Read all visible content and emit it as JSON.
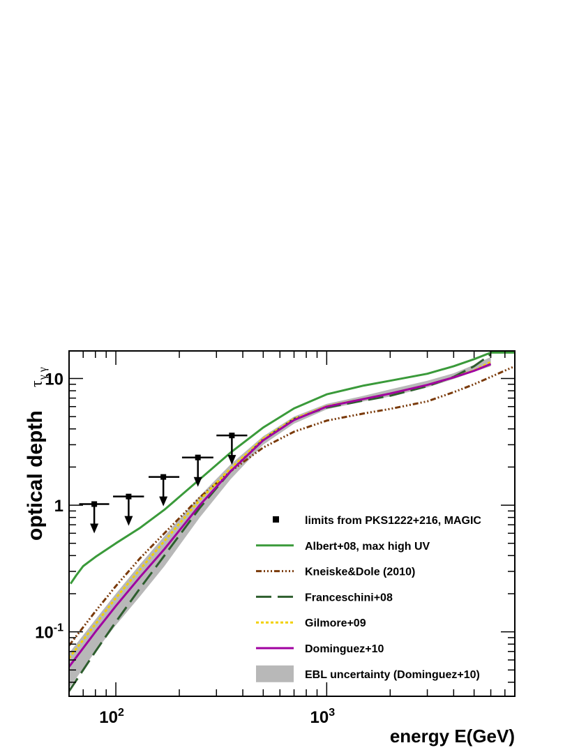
{
  "chart_data": {
    "type": "line",
    "xlabel": "energy E(GeV)",
    "ylabel": "optical depth",
    "ylabel_symbol": "τ",
    "ylabel_subscript": "γ γ",
    "xscale": "log",
    "yscale": "log",
    "xlim": [
      60,
      7800
    ],
    "ylim": [
      0.031,
      16.5
    ],
    "x_ticks": [
      {
        "value": 100,
        "base": "10",
        "exp": "2"
      },
      {
        "value": 1000,
        "base": "10",
        "exp": "3"
      }
    ],
    "y_ticks": [
      {
        "value": 0.1,
        "base": "10",
        "exp": "-1"
      },
      {
        "value": 1,
        "label": "1"
      },
      {
        "value": 10,
        "label": "10"
      }
    ],
    "legend_position": "bottom-right",
    "band": {
      "name": "EBL uncertainty (Dominguez+10)",
      "color": "#b8b8b8",
      "x": [
        60,
        80,
        100,
        130,
        170,
        250,
        350,
        500,
        700,
        1000,
        1500,
        2000,
        3000,
        4000,
        5000,
        6000
      ],
      "upper": [
        0.068,
        0.125,
        0.2,
        0.34,
        0.57,
        1.18,
        2.1,
        3.5,
        5.0,
        6.3,
        7.3,
        8.2,
        9.6,
        11.0,
        12.8,
        14.8
      ],
      "lower": [
        0.036,
        0.07,
        0.113,
        0.19,
        0.33,
        0.8,
        1.6,
        3.0,
        4.4,
        5.7,
        6.6,
        7.2,
        8.5,
        9.9,
        11.3,
        12.5
      ]
    },
    "series": [
      {
        "name": "Albert+08, max high UV",
        "color": "#3a9a3a",
        "dash": "solid",
        "x": [
          61,
          65,
          70,
          80,
          100,
          130,
          170,
          250,
          350,
          500,
          700,
          1000,
          1500,
          2000,
          3000,
          4000,
          5000,
          6000,
          7800
        ],
        "y": [
          0.24,
          0.28,
          0.33,
          0.39,
          0.5,
          0.66,
          0.92,
          1.6,
          2.6,
          4.1,
          5.8,
          7.5,
          8.8,
          9.6,
          10.9,
          12.5,
          14.2,
          16.0,
          16.0
        ]
      },
      {
        "name": "Kneiske&Dole (2010)",
        "color": "#7a3a0a",
        "dash": "8,3,2,3,2,3,2,3",
        "x": [
          60,
          80,
          100,
          130,
          170,
          250,
          350,
          500,
          700,
          1000,
          1500,
          2000,
          3000,
          4000,
          5000,
          6000,
          7800
        ],
        "y": [
          0.078,
          0.145,
          0.23,
          0.38,
          0.6,
          1.15,
          1.85,
          2.85,
          3.8,
          4.65,
          5.3,
          5.75,
          6.6,
          7.8,
          9.0,
          10.3,
          12.5
        ]
      },
      {
        "name": "Franceschini+08",
        "color": "#2e5e2e",
        "dash": "22,9",
        "x": [
          60,
          80,
          100,
          130,
          170,
          250,
          350,
          500,
          700,
          1000,
          1500,
          2000,
          3000,
          4000,
          5000,
          6000
        ],
        "y": [
          0.034,
          0.07,
          0.12,
          0.22,
          0.4,
          0.95,
          1.85,
          3.3,
          4.8,
          5.9,
          6.7,
          7.3,
          8.7,
          10.3,
          12.5,
          15.5
        ]
      },
      {
        "name": "Gilmore+09",
        "color": "#f2d000",
        "dash": "4,3",
        "x": [
          60,
          80,
          100,
          130,
          170,
          250,
          350,
          500,
          700,
          1000,
          1500,
          2000,
          3000,
          4000,
          5000,
          6000
        ],
        "y": [
          0.062,
          0.115,
          0.185,
          0.31,
          0.52,
          1.1,
          1.95,
          3.35,
          4.8,
          6.05,
          6.9,
          7.6,
          8.9,
          10.2,
          11.6,
          13.5
        ]
      },
      {
        "name": "Dominguez+10",
        "color": "#a000a0",
        "dash": "solid",
        "x": [
          60,
          80,
          100,
          130,
          170,
          250,
          350,
          500,
          700,
          1000,
          1500,
          2000,
          3000,
          4000,
          5000,
          6000
        ],
        "y": [
          0.053,
          0.1,
          0.16,
          0.27,
          0.45,
          1.0,
          1.85,
          3.25,
          4.7,
          6.0,
          6.9,
          7.6,
          8.9,
          10.2,
          11.5,
          13.0
        ]
      }
    ],
    "limits": {
      "name": "limits from PKS1222+216, MAGIC",
      "color": "#000000",
      "points": [
        {
          "x": 79,
          "y": 1.02,
          "xlo": 67,
          "xhi": 93
        },
        {
          "x": 115,
          "y": 1.17,
          "xlo": 97,
          "xhi": 136
        },
        {
          "x": 168,
          "y": 1.67,
          "xlo": 143,
          "xhi": 200
        },
        {
          "x": 245,
          "y": 2.38,
          "xlo": 206,
          "xhi": 290
        },
        {
          "x": 355,
          "y": 3.55,
          "xlo": 300,
          "xhi": 420
        }
      ]
    },
    "legend_order": [
      "limits from PKS1222+216, MAGIC",
      "Albert+08, max high UV",
      "Kneiske&Dole (2010)",
      "Franceschini+08",
      "Gilmore+09",
      "Dominguez+10",
      "EBL uncertainty (Dominguez+10)"
    ]
  }
}
